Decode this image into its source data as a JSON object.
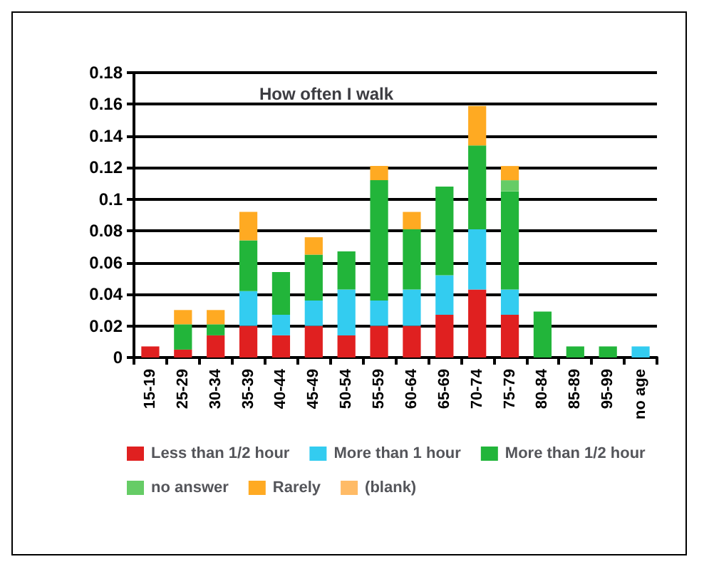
{
  "chart_data": {
    "type": "bar",
    "title": "How often I walk",
    "stacked": true,
    "grid": "y",
    "legend": "bottom",
    "categories": [
      "15-19",
      "25-29",
      "30-34",
      "35-39",
      "40-44",
      "45-49",
      "50-54",
      "55-59",
      "60-64",
      "65-69",
      "70-74",
      "75-79",
      "80-84",
      "85-89",
      "95-99",
      "no age"
    ],
    "ylim": [
      0,
      0.18
    ],
    "yticks": [
      0,
      0.02,
      0.04,
      0.06,
      0.08,
      0.1,
      0.12,
      0.14,
      0.16,
      0.18
    ],
    "series": [
      {
        "name": "Less than 1/2 hour",
        "color": "#e02020",
        "values": [
          0.007,
          0.005,
          0.014,
          0.02,
          0.014,
          0.02,
          0.014,
          0.02,
          0.02,
          0.027,
          0.043,
          0.027,
          null,
          null,
          null,
          null
        ]
      },
      {
        "name": "More than 1 hour",
        "color": "#33ccf0",
        "values": [
          null,
          null,
          null,
          0.022,
          0.013,
          0.016,
          0.029,
          0.016,
          0.023,
          0.025,
          0.038,
          0.016,
          null,
          null,
          null,
          0.007
        ]
      },
      {
        "name": "More than 1/2 hour",
        "color": "#22b53a",
        "values": [
          null,
          0.016,
          0.007,
          0.032,
          0.027,
          0.029,
          0.024,
          0.076,
          0.038,
          0.056,
          0.053,
          0.062,
          0.029,
          0.007,
          0.007,
          null
        ]
      },
      {
        "name": "no answer",
        "color": "#66cc66",
        "values": [
          null,
          null,
          null,
          null,
          null,
          null,
          null,
          null,
          null,
          null,
          null,
          0.007,
          null,
          null,
          null,
          null
        ]
      },
      {
        "name": "Rarely",
        "color": "#ffaa22",
        "values": [
          null,
          0.009,
          0.009,
          0.018,
          null,
          0.011,
          null,
          0.009,
          0.011,
          null,
          0.025,
          0.009,
          null,
          null,
          null,
          null
        ]
      },
      {
        "name": "(blank)",
        "color": "#ffbb66",
        "values": [
          null,
          null,
          null,
          null,
          null,
          null,
          null,
          null,
          null,
          null,
          null,
          null,
          null,
          null,
          null,
          null
        ]
      }
    ]
  }
}
